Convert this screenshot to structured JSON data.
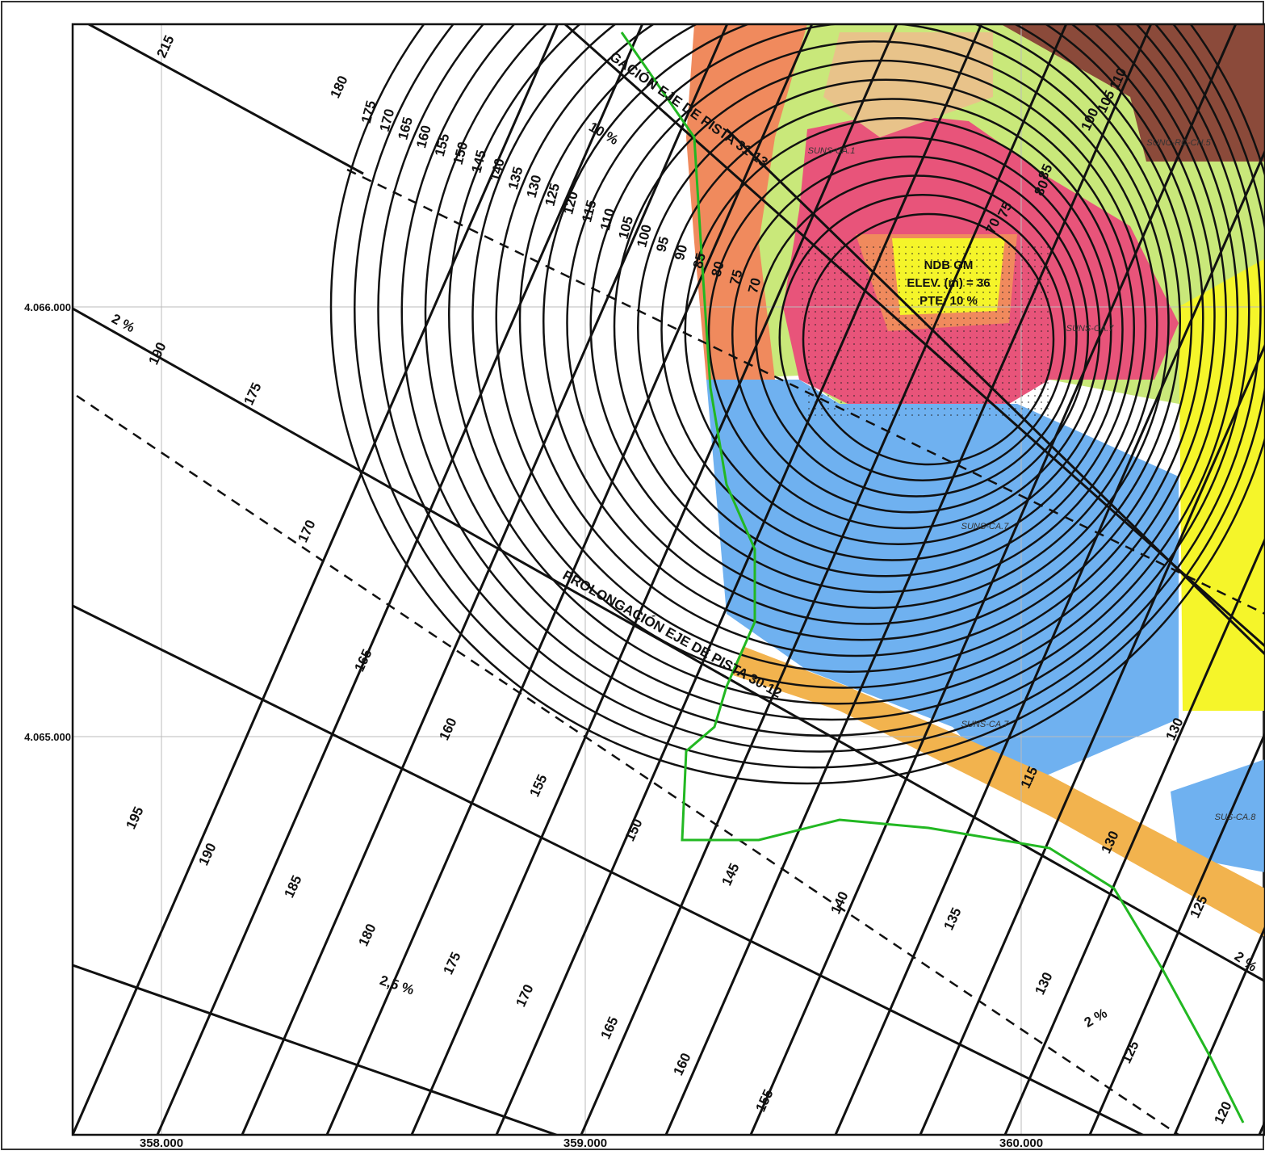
{
  "coordinates": {
    "easting": [
      "358.000",
      "359.000",
      "360.000"
    ],
    "northing": [
      "4.066.000",
      "4.065.000"
    ]
  },
  "ndb": {
    "name": "NDB GM",
    "elevation": "ELEV. (m) = 36",
    "slope": "PTE. 10 %"
  },
  "runway_axes": [
    "PROLONGACIÓN EJE DE PISTA 30-12",
    "GACIÓN EJE DE PISTA 31-13"
  ],
  "slope_labels": [
    "10 %",
    "2 %",
    "2,5 %",
    "2 %",
    "2 %"
  ],
  "ring_labels": [
    "175",
    "170",
    "165",
    "160",
    "155",
    "150",
    "145",
    "140",
    "135",
    "130",
    "125",
    "120",
    "115",
    "110",
    "105",
    "100",
    "95",
    "90",
    "85",
    "80",
    "75",
    "70"
  ],
  "contour_labels": [
    "215",
    "180",
    "190",
    "175",
    "170",
    "165",
    "160",
    "155",
    "150",
    "145",
    "140",
    "135",
    "130",
    "125",
    "120",
    "195",
    "190",
    "185",
    "180",
    "175",
    "170",
    "165",
    "160",
    "155",
    "130",
    "130",
    "125",
    "115",
    "110",
    "105",
    "100",
    "85",
    "80",
    "75",
    "70"
  ],
  "zone_labels": [
    "SUNS-CA.1",
    "SUNS-CA.7",
    "SUNS-CA.7",
    "SUNS-CA.7",
    "SUS-CA.8",
    "SUNC-RC-CH.5"
  ]
}
